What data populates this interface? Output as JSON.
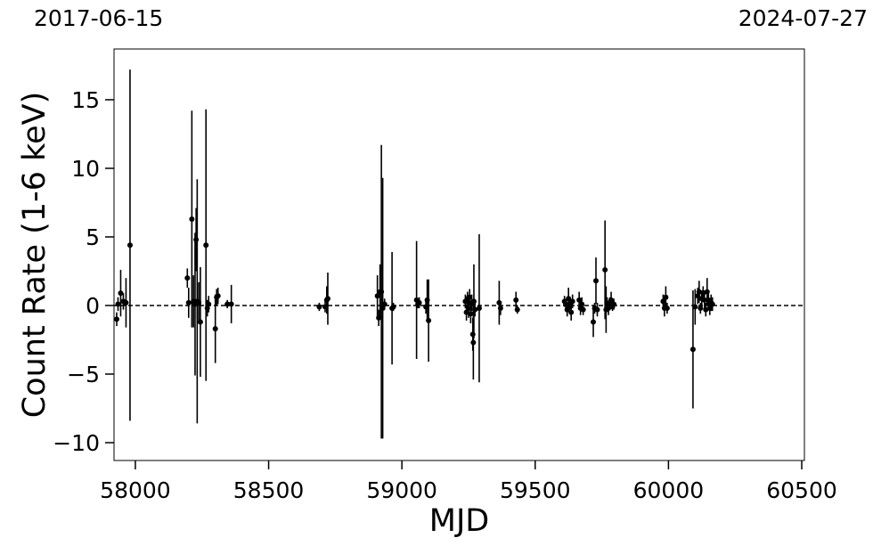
{
  "top_dates": {
    "left": "2017-06-15",
    "right": "2024-07-27"
  },
  "chart_data": {
    "type": "scatter",
    "title": "",
    "xlabel": "MJD",
    "ylabel": "Count Rate (1-6 keV)",
    "xlim": [
      57920,
      60510
    ],
    "ylim": [
      -11.3,
      18.7
    ],
    "xticks": [
      58000,
      58500,
      59000,
      59500,
      60000,
      60500
    ],
    "yticks": [
      -10,
      -5,
      0,
      5,
      10,
      15
    ],
    "ytick_labels": [
      "−10",
      "−5",
      "0",
      "5",
      "10",
      "15"
    ],
    "reference_line": {
      "y": 0,
      "style": "dashed"
    },
    "marker_color": "#000000",
    "grid": false,
    "points": [
      {
        "x": 57930,
        "y": -1.0,
        "err": 0.5
      },
      {
        "x": 57935,
        "y": 0.1,
        "err": 0.5
      },
      {
        "x": 57945,
        "y": 0.9,
        "err": 1.7
      },
      {
        "x": 57955,
        "y": 0.3,
        "err": 0.6
      },
      {
        "x": 57965,
        "y": 0.2,
        "err": 1.8
      },
      {
        "x": 57980,
        "y": 4.4,
        "err": 12.8
      },
      {
        "x": 58195,
        "y": 2.0,
        "err": 0.7
      },
      {
        "x": 58200,
        "y": 0.2,
        "err": 1.1
      },
      {
        "x": 58212,
        "y": 6.3,
        "err": 7.9
      },
      {
        "x": 58218,
        "y": 0.3,
        "err": 1.9
      },
      {
        "x": 58224,
        "y": 0.1,
        "err": 5.2
      },
      {
        "x": 58228,
        "y": 4.8,
        "err": 2.3
      },
      {
        "x": 58232,
        "y": 0.3,
        "err": 8.9
      },
      {
        "x": 58238,
        "y": 0.2,
        "err": 1.5
      },
      {
        "x": 58244,
        "y": -1.2,
        "err": 4.0
      },
      {
        "x": 58265,
        "y": 4.4,
        "err": 9.9
      },
      {
        "x": 58270,
        "y": -0.2,
        "err": 0.6
      },
      {
        "x": 58275,
        "y": 0.1,
        "err": 0.6
      },
      {
        "x": 58300,
        "y": -1.7,
        "err": 2.5
      },
      {
        "x": 58305,
        "y": 0.6,
        "err": 0.6
      },
      {
        "x": 58310,
        "y": 0.7,
        "err": 0.6
      },
      {
        "x": 58345,
        "y": 0.1,
        "err": 0.3
      },
      {
        "x": 58360,
        "y": 0.1,
        "err": 1.4
      },
      {
        "x": 58690,
        "y": -0.1,
        "err": 0.3
      },
      {
        "x": 58712,
        "y": -0.1,
        "err": 0.4
      },
      {
        "x": 58718,
        "y": 0.4,
        "err": 1.0
      },
      {
        "x": 58722,
        "y": 0.5,
        "err": 1.9
      },
      {
        "x": 58908,
        "y": 0.7,
        "err": 1.5
      },
      {
        "x": 58913,
        "y": -0.9,
        "err": 0.6
      },
      {
        "x": 58918,
        "y": 1.0,
        "err": 2.0
      },
      {
        "x": 58923,
        "y": 1.0,
        "err": 10.7
      },
      {
        "x": 58928,
        "y": -0.2,
        "err": 9.5
      },
      {
        "x": 58935,
        "y": 0.1,
        "err": 0.4
      },
      {
        "x": 58963,
        "y": -0.2,
        "err": 4.1
      },
      {
        "x": 58968,
        "y": -0.1,
        "err": 0.3
      },
      {
        "x": 59055,
        "y": 0.4,
        "err": 4.3
      },
      {
        "x": 59060,
        "y": 0.1,
        "err": 0.3
      },
      {
        "x": 59065,
        "y": 0.2,
        "err": 0.4
      },
      {
        "x": 59090,
        "y": -0.1,
        "err": 0.5
      },
      {
        "x": 59095,
        "y": 0.4,
        "err": 1.5
      },
      {
        "x": 59100,
        "y": -1.1,
        "err": 3.0
      },
      {
        "x": 59238,
        "y": 0.3,
        "err": 0.5
      },
      {
        "x": 59242,
        "y": -0.5,
        "err": 0.6
      },
      {
        "x": 59246,
        "y": 0.5,
        "err": 0.5
      },
      {
        "x": 59250,
        "y": -0.2,
        "err": 0.7
      },
      {
        "x": 59254,
        "y": 0.6,
        "err": 0.6
      },
      {
        "x": 59258,
        "y": -0.6,
        "err": 0.7
      },
      {
        "x": 59262,
        "y": 0.2,
        "err": 0.6
      },
      {
        "x": 59266,
        "y": -2.1,
        "err": 1.2
      },
      {
        "x": 59268,
        "y": -2.7,
        "err": 2.7
      },
      {
        "x": 59270,
        "y": 0.3,
        "err": 2.7
      },
      {
        "x": 59274,
        "y": -0.3,
        "err": 0.5
      },
      {
        "x": 59290,
        "y": -0.2,
        "err": 5.4
      },
      {
        "x": 59365,
        "y": 0.2,
        "err": 1.6
      },
      {
        "x": 59370,
        "y": -0.2,
        "err": 0.5
      },
      {
        "x": 59428,
        "y": 0.4,
        "err": 0.6
      },
      {
        "x": 59433,
        "y": -0.3,
        "err": 0.3
      },
      {
        "x": 59610,
        "y": 0.3,
        "err": 0.4
      },
      {
        "x": 59615,
        "y": 0.1,
        "err": 0.3
      },
      {
        "x": 59620,
        "y": -0.3,
        "err": 0.5
      },
      {
        "x": 59625,
        "y": 0.5,
        "err": 0.8
      },
      {
        "x": 59630,
        "y": 0.1,
        "err": 0.4
      },
      {
        "x": 59635,
        "y": -0.5,
        "err": 0.6
      },
      {
        "x": 59640,
        "y": 0.3,
        "err": 0.5
      },
      {
        "x": 59665,
        "y": 0.4,
        "err": 0.6
      },
      {
        "x": 59670,
        "y": -0.2,
        "err": 0.5
      },
      {
        "x": 59675,
        "y": 0.1,
        "err": 0.5
      },
      {
        "x": 59680,
        "y": -0.3,
        "err": 0.4
      },
      {
        "x": 59718,
        "y": -1.2,
        "err": 1.1
      },
      {
        "x": 59723,
        "y": -0.2,
        "err": 0.4
      },
      {
        "x": 59728,
        "y": 1.8,
        "err": 1.7
      },
      {
        "x": 59733,
        "y": -0.3,
        "err": 0.5
      },
      {
        "x": 59762,
        "y": 2.6,
        "err": 3.6
      },
      {
        "x": 59766,
        "y": -0.3,
        "err": 1.7
      },
      {
        "x": 59770,
        "y": 0.1,
        "err": 0.5
      },
      {
        "x": 59775,
        "y": -0.2,
        "err": 0.5
      },
      {
        "x": 59780,
        "y": 0.2,
        "err": 0.4
      },
      {
        "x": 59785,
        "y": 0.4,
        "err": 0.6
      },
      {
        "x": 59790,
        "y": -0.1,
        "err": 0.3
      },
      {
        "x": 59795,
        "y": 0.1,
        "err": 0.4
      },
      {
        "x": 59980,
        "y": 0.3,
        "err": 0.5
      },
      {
        "x": 59985,
        "y": -0.2,
        "err": 0.6
      },
      {
        "x": 59990,
        "y": 0.6,
        "err": 0.8
      },
      {
        "x": 59995,
        "y": -0.2,
        "err": 0.4
      },
      {
        "x": 60092,
        "y": -3.2,
        "err": 4.3
      },
      {
        "x": 60100,
        "y": -0.1,
        "err": 1.3
      },
      {
        "x": 60110,
        "y": 0.7,
        "err": 0.6
      },
      {
        "x": 60115,
        "y": 1.0,
        "err": 0.8
      },
      {
        "x": 60120,
        "y": -0.2,
        "err": 0.4
      },
      {
        "x": 60125,
        "y": 0.5,
        "err": 0.6
      },
      {
        "x": 60130,
        "y": 0.9,
        "err": 0.5
      },
      {
        "x": 60135,
        "y": 0.4,
        "err": 0.7
      },
      {
        "x": 60140,
        "y": -0.3,
        "err": 0.5
      },
      {
        "x": 60145,
        "y": 1.0,
        "err": 1.0
      },
      {
        "x": 60150,
        "y": 0.4,
        "err": 0.5
      },
      {
        "x": 60155,
        "y": -0.2,
        "err": 0.5
      },
      {
        "x": 60160,
        "y": 0.2,
        "err": 0.6
      },
      {
        "x": 60165,
        "y": 0.1,
        "err": 0.5
      }
    ]
  }
}
